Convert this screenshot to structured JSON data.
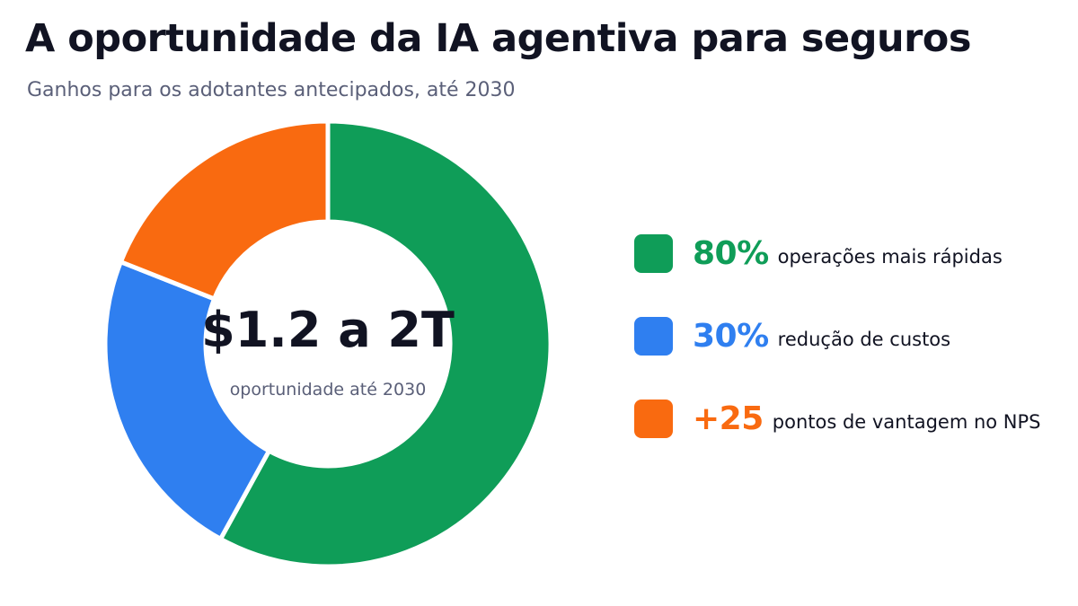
{
  "title": "A oportunidade da IA agentiva para seguros",
  "subtitle": "Ganhos para os adotantes antecipados, até 2030",
  "center": {
    "value": "$1.2 a 2T",
    "caption": "oportunidade até 2030"
  },
  "colors": {
    "green": "#0f9d58",
    "blue": "#2f7ff0",
    "orange": "#f96a10"
  },
  "legend": [
    {
      "value": "80%",
      "label": "operações mais rápidas",
      "color": "#0f9d58"
    },
    {
      "value": "30%",
      "label": "redução de custos",
      "color": "#2f7ff0"
    },
    {
      "value": "+25",
      "label": "pontos de vantagem no NPS",
      "color": "#f96a10"
    }
  ],
  "chart_data": {
    "type": "pie",
    "style": "donut",
    "values": [
      0.58,
      0.23,
      0.19
    ],
    "colors": [
      "#0f9d58",
      "#2f7ff0",
      "#f96a10"
    ]
  }
}
